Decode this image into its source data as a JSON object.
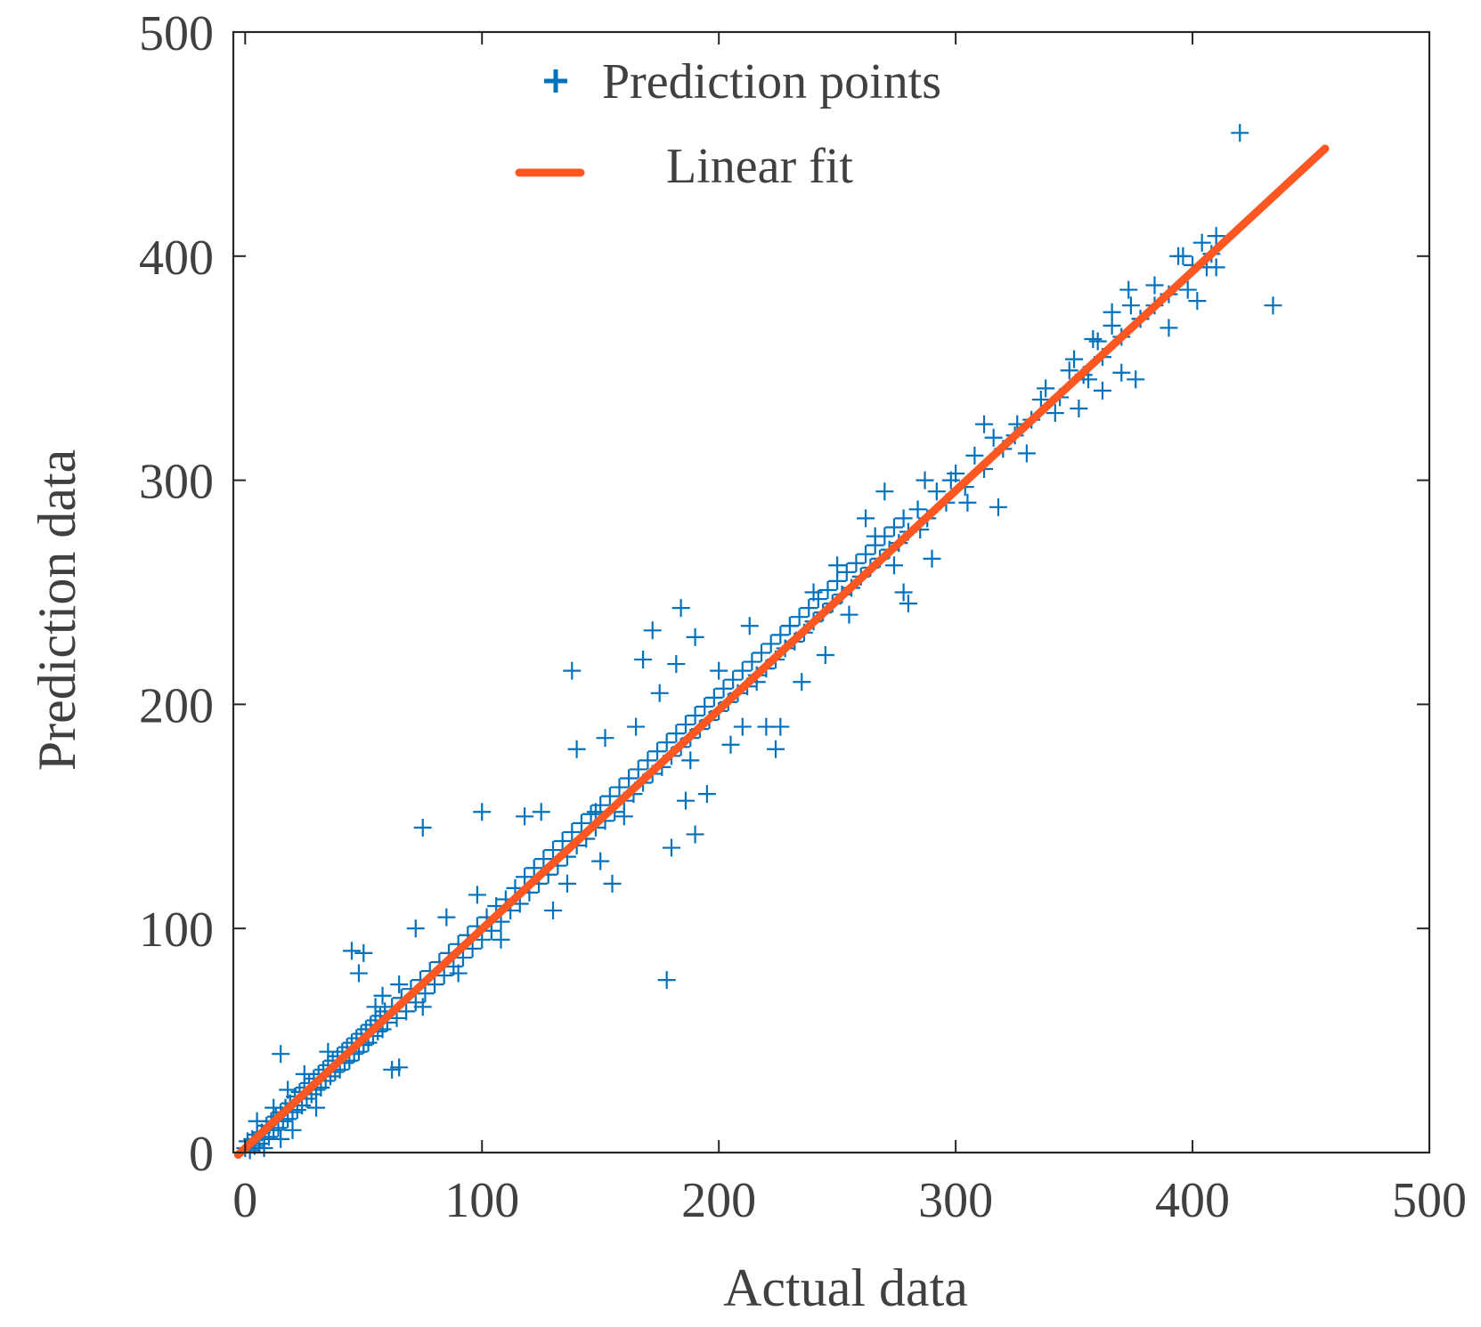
{
  "chart_data": {
    "type": "scatter",
    "title": "",
    "xlabel": "Actual data",
    "ylabel": "Prediction data",
    "xlim": [
      -5,
      500
    ],
    "ylim": [
      0,
      500
    ],
    "xticks": [
      0,
      100,
      200,
      300,
      400,
      500
    ],
    "yticks": [
      0,
      100,
      200,
      300,
      400,
      500
    ],
    "xtick_labels": [
      "0",
      "100",
      "200",
      "300",
      "400",
      "500"
    ],
    "ytick_labels": [
      "0",
      "100",
      "200",
      "300",
      "400",
      "500"
    ],
    "grid": false,
    "legend_position": "top-center",
    "series": [
      {
        "name": "Prediction points",
        "kind": "scatter",
        "marker": "plus",
        "color": "#0072BD",
        "points": [
          [
            0,
            2
          ],
          [
            1,
            5
          ],
          [
            2,
            1
          ],
          [
            3,
            6
          ],
          [
            4,
            3
          ],
          [
            5,
            8
          ],
          [
            6,
            4
          ],
          [
            7,
            9
          ],
          [
            8,
            6
          ],
          [
            9,
            12
          ],
          [
            10,
            7
          ],
          [
            11,
            14
          ],
          [
            12,
            10
          ],
          [
            13,
            16
          ],
          [
            14,
            11
          ],
          [
            15,
            18
          ],
          [
            16,
            14
          ],
          [
            17,
            20
          ],
          [
            18,
            15
          ],
          [
            19,
            22
          ],
          [
            20,
            18
          ],
          [
            21,
            25
          ],
          [
            22,
            19
          ],
          [
            23,
            27
          ],
          [
            24,
            21
          ],
          [
            25,
            29
          ],
          [
            26,
            24
          ],
          [
            27,
            31
          ],
          [
            28,
            26
          ],
          [
            29,
            33
          ],
          [
            30,
            28
          ],
          [
            31,
            35
          ],
          [
            32,
            29
          ],
          [
            33,
            37
          ],
          [
            34,
            32
          ],
          [
            35,
            39
          ],
          [
            36,
            34
          ],
          [
            37,
            41
          ],
          [
            38,
            36
          ],
          [
            39,
            43
          ],
          [
            40,
            37
          ],
          [
            41,
            45
          ],
          [
            42,
            40
          ],
          [
            43,
            47
          ],
          [
            44,
            41
          ],
          [
            45,
            49
          ],
          [
            46,
            44
          ],
          [
            47,
            51
          ],
          [
            48,
            45
          ],
          [
            49,
            53
          ],
          [
            50,
            48
          ],
          [
            51,
            55
          ],
          [
            52,
            49
          ],
          [
            53,
            57
          ],
          [
            54,
            52
          ],
          [
            55,
            59
          ],
          [
            56,
            54
          ],
          [
            57,
            61
          ],
          [
            58,
            55
          ],
          [
            59,
            63
          ],
          [
            60,
            58
          ],
          [
            62,
            65
          ],
          [
            64,
            60
          ],
          [
            66,
            69
          ],
          [
            68,
            63
          ],
          [
            70,
            73
          ],
          [
            72,
            67
          ],
          [
            74,
            77
          ],
          [
            76,
            71
          ],
          [
            78,
            81
          ],
          [
            80,
            75
          ],
          [
            82,
            85
          ],
          [
            84,
            79
          ],
          [
            86,
            89
          ],
          [
            88,
            83
          ],
          [
            90,
            93
          ],
          [
            92,
            87
          ],
          [
            94,
            97
          ],
          [
            96,
            91
          ],
          [
            98,
            101
          ],
          [
            100,
            95
          ],
          [
            102,
            105
          ],
          [
            104,
            99
          ],
          [
            106,
            110
          ],
          [
            108,
            103
          ],
          [
            110,
            113
          ],
          [
            112,
            108
          ],
          [
            114,
            118
          ],
          [
            116,
            111
          ],
          [
            118,
            123
          ],
          [
            120,
            116
          ],
          [
            122,
            127
          ],
          [
            124,
            120
          ],
          [
            126,
            131
          ],
          [
            128,
            124
          ],
          [
            130,
            135
          ],
          [
            132,
            128
          ],
          [
            134,
            139
          ],
          [
            136,
            132
          ],
          [
            138,
            143
          ],
          [
            140,
            137
          ],
          [
            142,
            147
          ],
          [
            144,
            140
          ],
          [
            146,
            151
          ],
          [
            148,
            145
          ],
          [
            150,
            155
          ],
          [
            152,
            148
          ],
          [
            154,
            159
          ],
          [
            156,
            152
          ],
          [
            158,
            163
          ],
          [
            160,
            157
          ],
          [
            162,
            167
          ],
          [
            164,
            160
          ],
          [
            166,
            171
          ],
          [
            168,
            165
          ],
          [
            170,
            175
          ],
          [
            172,
            169
          ],
          [
            174,
            179
          ],
          [
            176,
            172
          ],
          [
            178,
            183
          ],
          [
            180,
            177
          ],
          [
            182,
            187
          ],
          [
            184,
            181
          ],
          [
            186,
            191
          ],
          [
            188,
            185
          ],
          [
            190,
            195
          ],
          [
            192,
            189
          ],
          [
            194,
            199
          ],
          [
            196,
            193
          ],
          [
            198,
            203
          ],
          [
            200,
            197
          ],
          [
            202,
            207
          ],
          [
            204,
            201
          ],
          [
            206,
            211
          ],
          [
            208,
            205
          ],
          [
            210,
            215
          ],
          [
            212,
            208
          ],
          [
            214,
            219
          ],
          [
            216,
            213
          ],
          [
            218,
            223
          ],
          [
            220,
            216
          ],
          [
            222,
            227
          ],
          [
            224,
            220
          ],
          [
            226,
            231
          ],
          [
            228,
            225
          ],
          [
            230,
            235
          ],
          [
            232,
            228
          ],
          [
            234,
            239
          ],
          [
            236,
            232
          ],
          [
            238,
            243
          ],
          [
            240,
            237
          ],
          [
            242,
            247
          ],
          [
            244,
            241
          ],
          [
            246,
            251
          ],
          [
            248,
            245
          ],
          [
            250,
            255
          ],
          [
            252,
            249
          ],
          [
            254,
            259
          ],
          [
            256,
            252
          ],
          [
            258,
            263
          ],
          [
            260,
            257
          ],
          [
            262,
            267
          ],
          [
            264,
            261
          ],
          [
            266,
            271
          ],
          [
            268,
            265
          ],
          [
            270,
            275
          ],
          [
            272,
            269
          ],
          [
            274,
            279
          ],
          [
            276,
            272
          ],
          [
            278,
            283
          ],
          [
            280,
            277
          ],
          [
            284,
            287
          ],
          [
            288,
            283
          ],
          [
            292,
            295
          ],
          [
            296,
            290
          ],
          [
            300,
            303
          ],
          [
            304,
            297
          ],
          [
            308,
            311
          ],
          [
            312,
            305
          ],
          [
            316,
            319
          ],
          [
            320,
            314
          ],
          [
            326,
            325
          ],
          [
            332,
            327
          ],
          [
            338,
            341
          ],
          [
            344,
            337
          ],
          [
            350,
            354
          ],
          [
            354,
            347
          ],
          [
            358,
            363
          ],
          [
            362,
            355
          ],
          [
            366,
            369
          ],
          [
            370,
            364
          ],
          [
            374,
            378
          ],
          [
            378,
            372
          ],
          [
            384,
            387
          ],
          [
            390,
            383
          ],
          [
            396,
            400
          ],
          [
            400,
            396
          ],
          [
            404,
            406
          ],
          [
            408,
            401
          ],
          [
            410,
            409
          ],
          [
            5,
            14
          ],
          [
            8,
            2
          ],
          [
            12,
            20
          ],
          [
            15,
            6
          ],
          [
            18,
            28
          ],
          [
            20,
            10
          ],
          [
            15,
            44
          ],
          [
            25,
            35
          ],
          [
            30,
            20
          ],
          [
            35,
            45
          ],
          [
            45,
            90
          ],
          [
            50,
            89
          ],
          [
            48,
            80
          ],
          [
            55,
            65
          ],
          [
            62,
            37
          ],
          [
            65,
            38
          ],
          [
            58,
            70
          ],
          [
            65,
            75
          ],
          [
            72,
            100
          ],
          [
            75,
            65
          ],
          [
            75,
            145
          ],
          [
            85,
            105
          ],
          [
            90,
            80
          ],
          [
            98,
            115
          ],
          [
            100,
            152
          ],
          [
            108,
            95
          ],
          [
            118,
            150
          ],
          [
            125,
            152
          ],
          [
            130,
            108
          ],
          [
            136,
            120
          ],
          [
            138,
            215
          ],
          [
            140,
            180
          ],
          [
            148,
            152
          ],
          [
            150,
            130
          ],
          [
            152,
            185
          ],
          [
            155,
            120
          ],
          [
            160,
            150
          ],
          [
            165,
            190
          ],
          [
            168,
            220
          ],
          [
            172,
            233
          ],
          [
            175,
            205
          ],
          [
            178,
            77
          ],
          [
            180,
            136
          ],
          [
            182,
            218
          ],
          [
            184,
            243
          ],
          [
            186,
            157
          ],
          [
            188,
            175
          ],
          [
            190,
            142
          ],
          [
            190,
            230
          ],
          [
            195,
            160
          ],
          [
            200,
            215
          ],
          [
            205,
            182
          ],
          [
            210,
            190
          ],
          [
            213,
            235
          ],
          [
            216,
            210
          ],
          [
            220,
            190
          ],
          [
            224,
            180
          ],
          [
            226,
            190
          ],
          [
            230,
            235
          ],
          [
            235,
            210
          ],
          [
            240,
            250
          ],
          [
            245,
            222
          ],
          [
            250,
            262
          ],
          [
            255,
            240
          ],
          [
            262,
            283
          ],
          [
            266,
            275
          ],
          [
            270,
            295
          ],
          [
            274,
            262
          ],
          [
            278,
            250
          ],
          [
            280,
            245
          ],
          [
            285,
            278
          ],
          [
            287,
            300
          ],
          [
            290,
            265
          ],
          [
            298,
            300
          ],
          [
            305,
            290
          ],
          [
            312,
            325
          ],
          [
            318,
            288
          ],
          [
            325,
            320
          ],
          [
            330,
            312
          ],
          [
            336,
            336
          ],
          [
            342,
            330
          ],
          [
            348,
            349
          ],
          [
            352,
            332
          ],
          [
            356,
            345
          ],
          [
            360,
            362
          ],
          [
            362,
            340
          ],
          [
            366,
            375
          ],
          [
            370,
            348
          ],
          [
            373,
            385
          ],
          [
            376,
            345
          ],
          [
            378,
            372
          ],
          [
            384,
            378
          ],
          [
            390,
            368
          ],
          [
            394,
            400
          ],
          [
            398,
            385
          ],
          [
            402,
            380
          ],
          [
            406,
            395
          ],
          [
            410,
            395
          ],
          [
            420,
            455
          ],
          [
            434,
            378
          ]
        ]
      },
      {
        "name": "Linear fit",
        "kind": "line",
        "color": "#FF5722",
        "x": [
          -3,
          456
        ],
        "y": [
          -1,
          448
        ]
      }
    ]
  }
}
